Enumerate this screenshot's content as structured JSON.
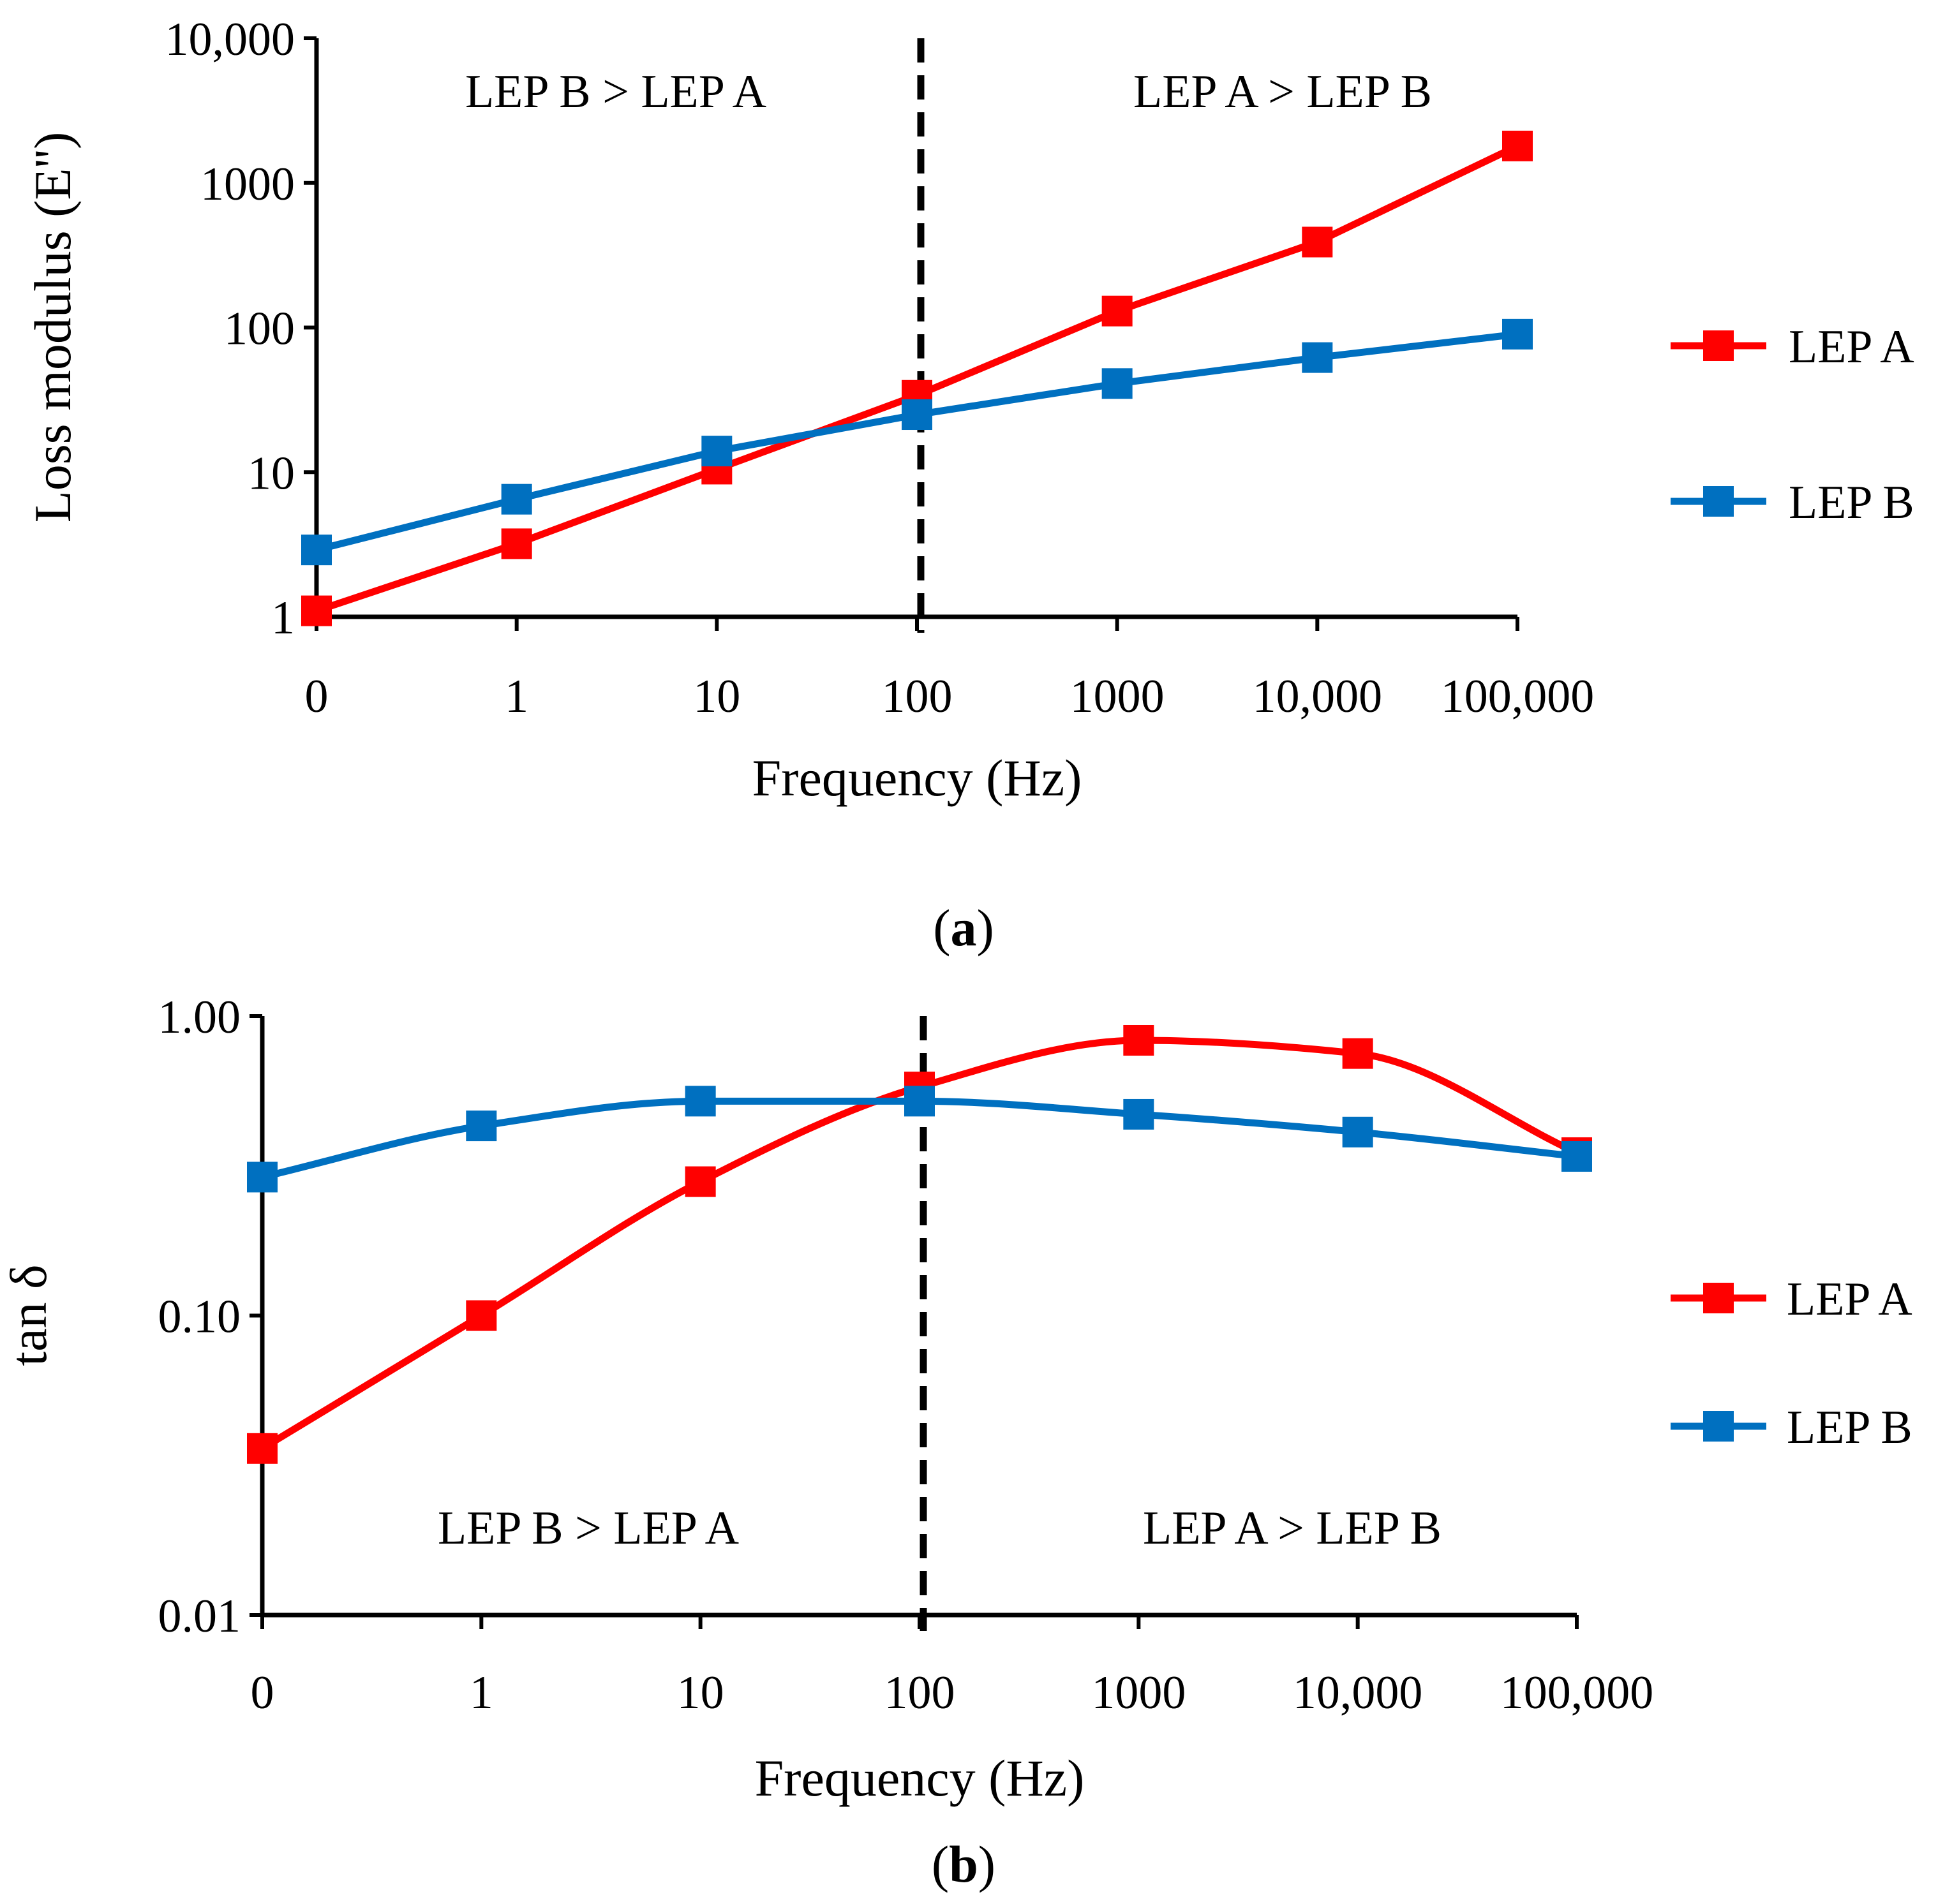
{
  "chart_data": [
    {
      "type": "line",
      "panel_label": "a",
      "scale": "log",
      "categories": [
        "0",
        "1",
        "10",
        "100",
        "1000",
        "10,000",
        "100,000"
      ],
      "xlabel": "Frequency (Hz)",
      "ylabel": "Loss modulus (E'')",
      "ylim": [
        1,
        10000
      ],
      "yticks": [
        {
          "value": 1,
          "label": "1"
        },
        {
          "value": 10,
          "label": "10"
        },
        {
          "value": 100,
          "label": "100"
        },
        {
          "value": 1000,
          "label": "1000"
        },
        {
          "value": 10000,
          "label": "10,000"
        }
      ],
      "divider_at_category": "100",
      "region_labels": {
        "left": "LEP B > LEP A",
        "right": "LEP A > LEP B"
      },
      "series": [
        {
          "name": "LEP A",
          "color": "#ff0000",
          "values": [
            1.1,
            3.2,
            10.5,
            34,
            130,
            390,
            1800
          ]
        },
        {
          "name": "LEP B",
          "color": "#0070c0",
          "values": [
            2.9,
            6.5,
            14,
            25,
            41,
            62,
            90
          ]
        }
      ],
      "legend": "right"
    },
    {
      "type": "line",
      "panel_label": "b",
      "scale": "log",
      "categories": [
        "0",
        "1",
        "10",
        "100",
        "1000",
        "10,000",
        "100,000"
      ],
      "xlabel": "Frequency (Hz)",
      "ylabel": "tan δ",
      "ylim": [
        0.01,
        1
      ],
      "yticks": [
        {
          "value": 0.01,
          "label": "0.01"
        },
        {
          "value": 0.1,
          "label": "0.10"
        },
        {
          "value": 1,
          "label": "1.00"
        }
      ],
      "divider_at_category": "100",
      "region_labels": {
        "left": "LEP B > LEP A",
        "right": "LEP A > LEP B"
      },
      "series": [
        {
          "name": "LEP A",
          "color": "#ff0000",
          "values": [
            0.036,
            0.1,
            0.28,
            0.58,
            0.83,
            0.75,
            0.35
          ]
        },
        {
          "name": "LEP B",
          "color": "#0070c0",
          "values": [
            0.29,
            0.43,
            0.52,
            0.52,
            0.47,
            0.41,
            0.34
          ]
        }
      ],
      "legend": "right"
    }
  ]
}
